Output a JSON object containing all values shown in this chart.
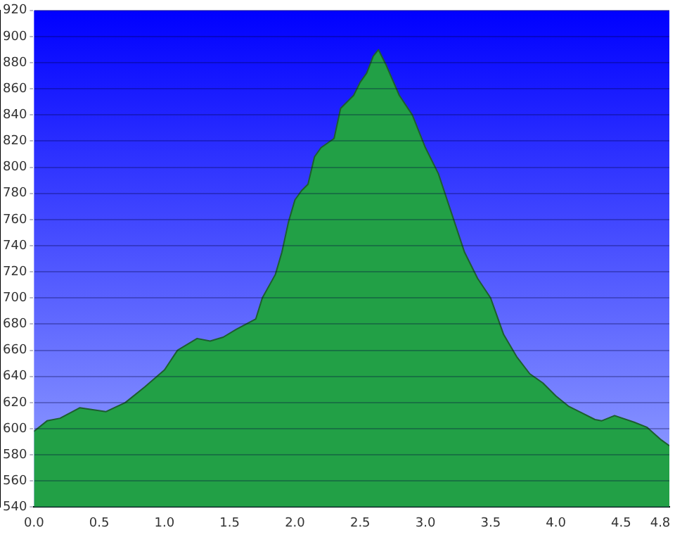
{
  "chart_data": {
    "type": "area",
    "x": [
      0,
      0.1,
      0.2,
      0.35,
      0.55,
      0.7,
      0.85,
      1.0,
      1.1,
      1.25,
      1.35,
      1.45,
      1.55,
      1.7,
      1.75,
      1.85,
      1.9,
      1.95,
      2.0,
      2.05,
      2.1,
      2.15,
      2.2,
      2.3,
      2.35,
      2.45,
      2.5,
      2.55,
      2.6,
      2.64,
      2.7,
      2.8,
      2.9,
      3.0,
      3.1,
      3.2,
      3.3,
      3.4,
      3.5,
      3.6,
      3.7,
      3.8,
      3.9,
      4.0,
      4.1,
      4.2,
      4.3,
      4.35,
      4.45,
      4.6,
      4.7,
      4.8,
      4.87
    ],
    "values": [
      598,
      606,
      608,
      616,
      613,
      620,
      632,
      645,
      660,
      669,
      667,
      670,
      676,
      684,
      700,
      718,
      735,
      758,
      775,
      782,
      787,
      808,
      815,
      822,
      845,
      855,
      865,
      872,
      885,
      890,
      878,
      855,
      840,
      815,
      795,
      765,
      735,
      715,
      700,
      672,
      655,
      642,
      635,
      625,
      617,
      612,
      607,
      606,
      610,
      605,
      601,
      592,
      587
    ],
    "color": "#22a046",
    "xlim": [
      0,
      4.87
    ],
    "xticks": [
      {
        "value": 0,
        "label": "0.0"
      },
      0.5,
      {
        "value": 1,
        "label": "1.0"
      },
      1.5,
      {
        "value": 2,
        "label": "2.0"
      },
      2.5,
      {
        "value": 3,
        "label": "3.0"
      },
      3.5,
      {
        "value": 4,
        "label": "4.0"
      },
      4.5,
      4.8
    ],
    "ylim": [
      540,
      920
    ],
    "yticks": [
      540,
      560,
      580,
      600,
      620,
      640,
      660,
      680,
      700,
      720,
      740,
      760,
      780,
      800,
      820,
      840,
      860,
      880,
      900,
      920
    ],
    "grid": "y",
    "legend": false,
    "marker": "none"
  }
}
